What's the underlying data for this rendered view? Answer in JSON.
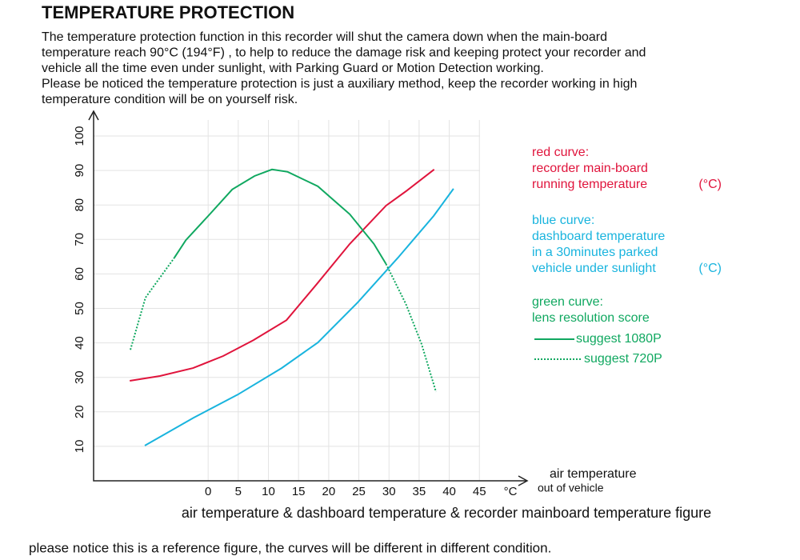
{
  "heading": "TEMPERATURE PROTECTION",
  "intro_lines": [
    "The temperature protection function in this recorder will shut the camera down when the main-board",
    "temperature reach 90°C (194°F) , to help to reduce the damage risk and keeping protect your recorder and",
    "vehicle all the time even under sunlight, with Parking Guard  or Motion Detection working.",
    "Please be noticed the temperature protection is just a auxiliary method, keep the recorder working in high",
    "temperature condition will be on yourself risk."
  ],
  "footnote": "please notice this is a reference figure, the curves will be different in different condition.",
  "chart_data": {
    "type": "line",
    "title": "air temperature & dashboard temperature & recorder mainboard temperature figure",
    "x_label_lines": [
      "air temperature",
      "out of vehicle"
    ],
    "x_unit": "°C",
    "xlim": [
      -19,
      52
    ],
    "xticks": [
      0,
      5,
      10,
      15,
      20,
      25,
      30,
      35,
      40,
      45
    ],
    "ylim": [
      0,
      100
    ],
    "yticks": [
      10,
      20,
      30,
      40,
      50,
      60,
      70,
      80,
      90,
      100
    ],
    "grid": true,
    "series": [
      {
        "name": "red curve:",
        "legend_lines": [
          "recorder main-board",
          "running temperature"
        ],
        "unit": "(°C)",
        "color": "#e0143c",
        "dash": false,
        "x": [
          -13,
          -8,
          -2.5,
          2.5,
          7.5,
          13,
          18,
          23.5,
          29.5,
          33,
          37.5
        ],
        "values": [
          29,
          30.4,
          32.7,
          36.2,
          40.8,
          46.6,
          57,
          68.7,
          79.8,
          84.2,
          90.3
        ]
      },
      {
        "name": "blue curve:",
        "legend_lines": [
          "dashboard temperature",
          "in a 30minutes parked",
          "vehicle under sunlight"
        ],
        "unit": "(°C)",
        "color": "#19b4de",
        "dash": false,
        "x": [
          -10.5,
          -2.4,
          4.9,
          12.2,
          18.2,
          24.8,
          31.5,
          37.4,
          40.7
        ],
        "values": [
          10.2,
          18.3,
          25,
          32.7,
          40.1,
          51.7,
          64.7,
          76.8,
          84.7
        ]
      },
      {
        "name": "suggest 1080P",
        "color": "#10a860",
        "dash": false,
        "x": [
          -5.6,
          -3.7,
          0,
          4,
          7.7,
          10.6,
          13.2,
          18.2,
          23.5,
          27.5,
          29.5
        ],
        "values": [
          64.7,
          69.8,
          76.8,
          84.5,
          88.4,
          90.3,
          89.6,
          85.4,
          77.3,
          68.7,
          62.9
        ]
      },
      {
        "name": "suggest 720P",
        "color": "#10a860",
        "dash": true,
        "x": [
          -12.9,
          -10.4,
          -5.6,
          null,
          29.5,
          32.8,
          35.4,
          37.8
        ],
        "values": [
          38,
          53.1,
          64.7,
          null,
          62.9,
          51.3,
          39.7,
          25.8
        ]
      }
    ],
    "green_legend_lines": [
      "green curve:",
      "lens resolution score"
    ]
  }
}
